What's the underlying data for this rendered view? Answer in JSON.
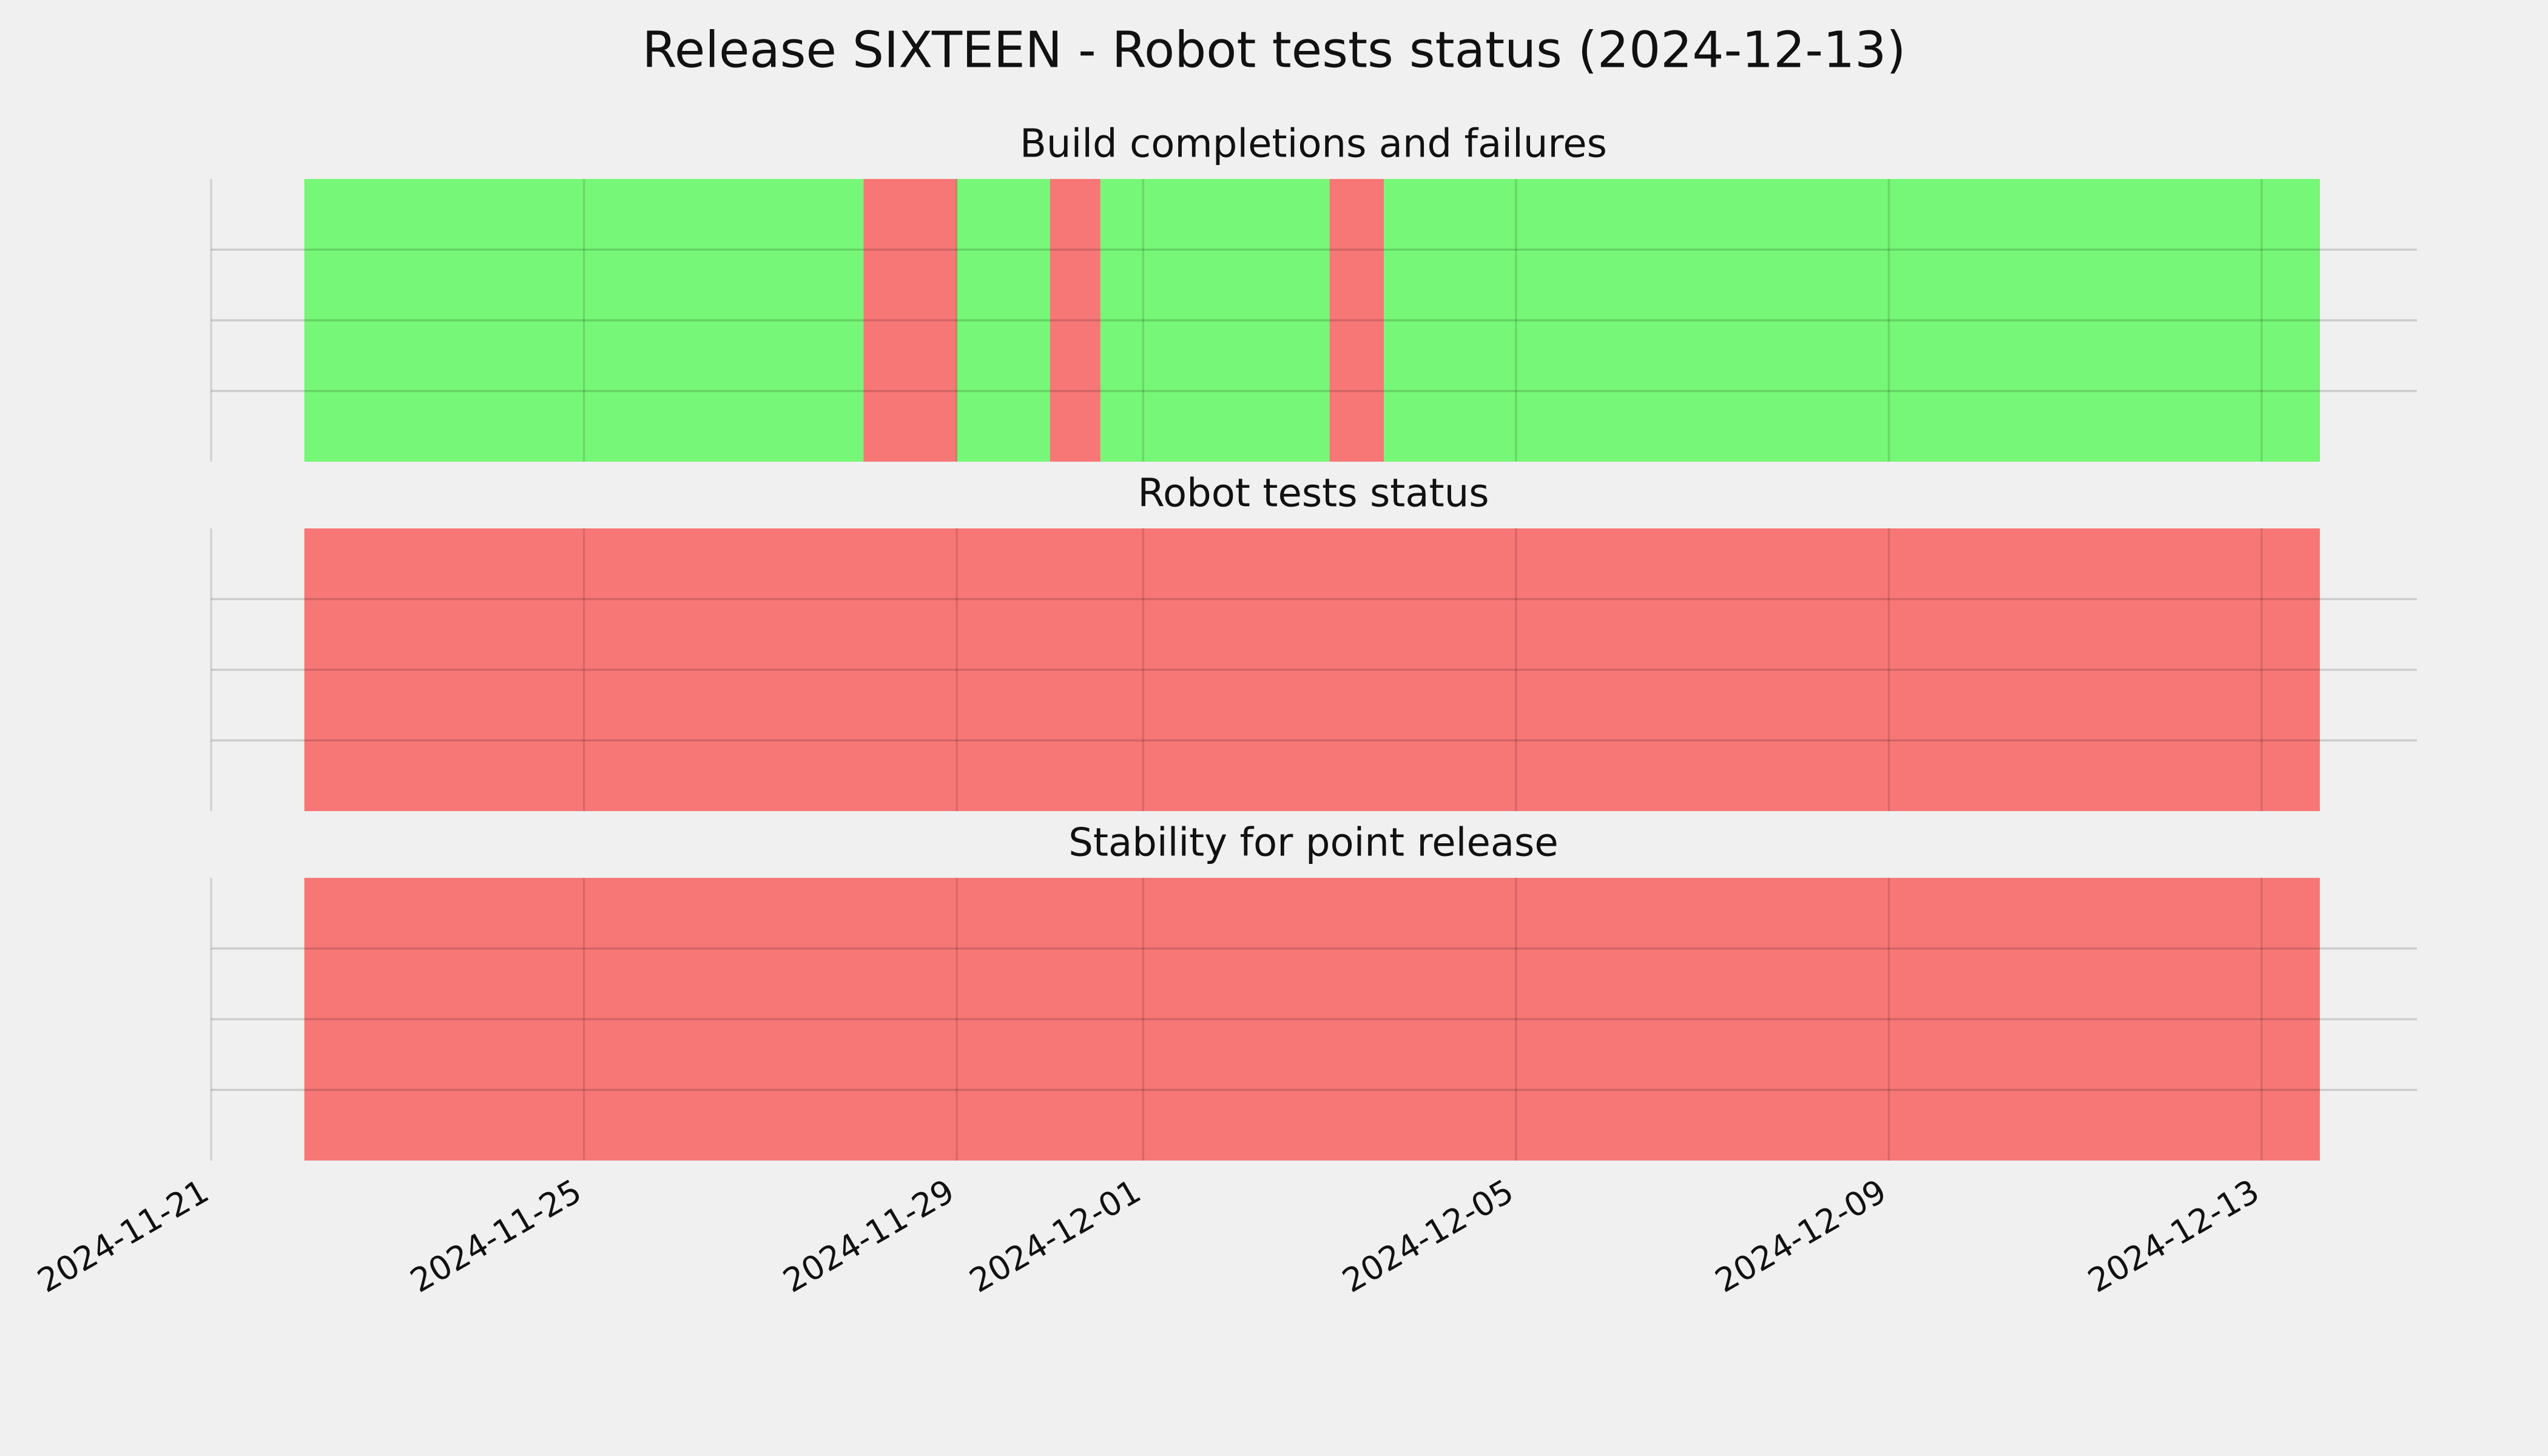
{
  "chart_data": {
    "type": "timeline",
    "title": "Release SIXTEEN - Robot tests status (2024-12-13)",
    "xlim": [
      "2024-11-21",
      "2024-12-14T16:00"
    ],
    "xticks": [
      "2024-11-21",
      "2024-11-25",
      "2024-11-29",
      "2024-12-01",
      "2024-12-05",
      "2024-12-09",
      "2024-12-13"
    ],
    "ylim": [
      0,
      1
    ],
    "ygrid": [
      0.25,
      0.5,
      0.75
    ],
    "grid": true,
    "panels": [
      {
        "title": "Build completions and failures",
        "segments": [
          {
            "start": "2024-11-22",
            "end": "2024-11-28",
            "color": "#77f777"
          },
          {
            "start": "2024-11-28",
            "end": "2024-11-29",
            "color": "#f77777"
          },
          {
            "start": "2024-11-29",
            "end": "2024-11-30",
            "color": "#77f777"
          },
          {
            "start": "2024-11-30",
            "end": "2024-11-30T13:00",
            "color": "#f77777"
          },
          {
            "start": "2024-11-30T13:00",
            "end": "2024-12-03",
            "color": "#77f777"
          },
          {
            "start": "2024-12-03",
            "end": "2024-12-03T14:00",
            "color": "#f77777"
          },
          {
            "start": "2024-12-03T14:00",
            "end": "2024-12-13T15:00",
            "color": "#77f777"
          }
        ]
      },
      {
        "title": "Robot tests status",
        "segments": [
          {
            "start": "2024-11-22",
            "end": "2024-12-13T15:00",
            "color": "#f77777"
          }
        ]
      },
      {
        "title": "Stability for point release",
        "segments": [
          {
            "start": "2024-11-22",
            "end": "2024-12-13T15:00",
            "color": "#f77777"
          }
        ]
      }
    ]
  }
}
